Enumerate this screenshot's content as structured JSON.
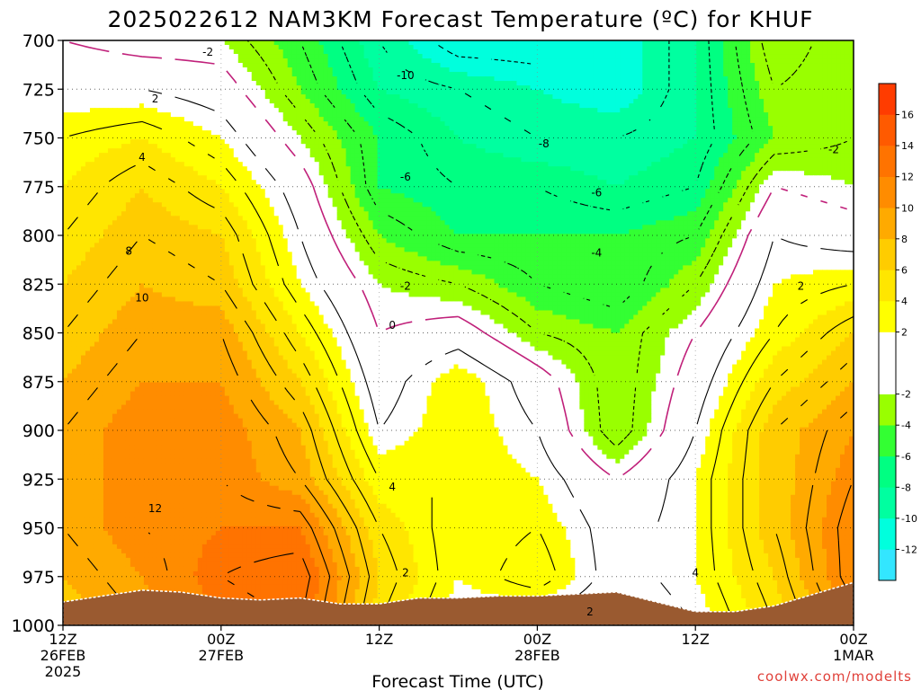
{
  "title": "2025022612 NAM3KM Forecast Temperature (ºC) for KHUF",
  "credit": "coolwx.com/modelts",
  "chart_data": {
    "type": "heatmap",
    "title": "2025022612 NAM3KM Forecast Temperature (ºC) for KHUF",
    "xlabel": "Forecast Time (UTC)",
    "ylabel": "",
    "x": [
      0,
      6,
      12,
      18,
      24,
      30,
      36,
      42,
      48,
      54,
      60
    ],
    "x_unit": "hours since 12Z 26FEB 2025",
    "xlim": [
      0,
      60
    ],
    "x_ticks": [
      {
        "h": 0,
        "lines": [
          "12Z",
          "26FEB",
          "2025"
        ]
      },
      {
        "h": 12,
        "lines": [
          "00Z",
          "27FEB"
        ]
      },
      {
        "h": 24,
        "lines": [
          "12Z"
        ]
      },
      {
        "h": 36,
        "lines": [
          "00Z",
          "28FEB"
        ]
      },
      {
        "h": 48,
        "lines": [
          "12Z"
        ]
      },
      {
        "h": 60,
        "lines": [
          "00Z",
          "1MAR"
        ]
      }
    ],
    "y": [
      1000,
      975,
      950,
      925,
      900,
      875,
      850,
      825,
      800,
      775,
      750,
      725,
      700
    ],
    "y_unit": "hPa",
    "ylim": [
      1000,
      700
    ],
    "y_ticks": [
      "700",
      "725",
      "750",
      "775",
      "800",
      "825",
      "850",
      "875",
      "900",
      "925",
      "950",
      "975",
      "1000"
    ],
    "z": [
      [
        8,
        10,
        13,
        14,
        6,
        2,
        1,
        0,
        2,
        6,
        11
      ],
      [
        9,
        11,
        14,
        15,
        7,
        3,
        5,
        1,
        3,
        7,
        13
      ],
      [
        10,
        12,
        13,
        13,
        6,
        3,
        4,
        1,
        3,
        8,
        13
      ],
      [
        10,
        12,
        12,
        10,
        4,
        4,
        3,
        0,
        3,
        8,
        12
      ],
      [
        10,
        12,
        12,
        9,
        2,
        4,
        2,
        -3,
        2,
        8,
        11
      ],
      [
        9,
        11,
        11,
        7,
        1,
        4,
        1,
        -3,
        1,
        6,
        9
      ],
      [
        8,
        10,
        10,
        5,
        0,
        1,
        -2,
        -3,
        0,
        4,
        7
      ],
      [
        7,
        9,
        8,
        3,
        -1,
        -2,
        -4,
        -5,
        -2,
        3,
        4
      ],
      [
        6,
        8,
        7,
        2,
        -3,
        -5,
        -5,
        -5,
        -4,
        2,
        1
      ],
      [
        5,
        7,
        5,
        1,
        -5,
        -6,
        -6,
        -7,
        -6,
        0,
        -1
      ],
      [
        4,
        5,
        3,
        -1,
        -5,
        -7,
        -8,
        -8,
        -7,
        -3,
        -2
      ],
      [
        2,
        2,
        1,
        -3,
        -7,
        -8,
        -9,
        -10,
        -7,
        -2,
        -3
      ],
      [
        0,
        -1,
        -1,
        -4,
        -8,
        -11,
        -11,
        -10,
        -7,
        -1,
        -3
      ]
    ],
    "terrain_hPa": [
      988,
      985,
      982,
      983,
      986,
      987,
      986,
      989,
      989,
      986,
      986,
      985,
      985,
      984,
      983,
      988,
      993,
      993,
      990,
      984,
      978
    ],
    "contour_labels": [
      {
        "h": 11,
        "p": 706,
        "v": -2
      },
      {
        "h": 7,
        "p": 730,
        "v": 2
      },
      {
        "h": 6,
        "p": 760,
        "v": 4
      },
      {
        "h": 5,
        "p": 808,
        "v": 8
      },
      {
        "h": 6,
        "p": 832,
        "v": 10
      },
      {
        "h": 7,
        "p": 940,
        "v": 12
      },
      {
        "h": 26,
        "p": 718,
        "v": -10
      },
      {
        "h": 26,
        "p": 770,
        "v": -6
      },
      {
        "h": 36.5,
        "p": 753,
        "v": -8
      },
      {
        "h": 40.5,
        "p": 778,
        "v": -6
      },
      {
        "h": 40.5,
        "p": 809,
        "v": -4
      },
      {
        "h": 26,
        "p": 826,
        "v": -2
      },
      {
        "h": 25,
        "p": 846,
        "v": 0
      },
      {
        "h": 25,
        "p": 929,
        "v": 4
      },
      {
        "h": 26,
        "p": 973,
        "v": 2
      },
      {
        "h": 40,
        "p": 993,
        "v": 2
      },
      {
        "h": 48,
        "p": 973,
        "v": 4
      },
      {
        "h": 56,
        "p": 826,
        "v": 2
      },
      {
        "h": 58.5,
        "p": 756,
        "v": -2
      }
    ],
    "levels": [
      -13,
      -11,
      -9,
      -7,
      -5,
      -3,
      -1,
      1,
      3,
      5,
      7,
      9,
      11,
      13,
      15,
      17,
      19
    ],
    "fill_colors": [
      "#33e6ff",
      "#00ffdd",
      "#00ffa0",
      "#00ff82",
      "#33ff33",
      "#99ff00",
      "#ffffff",
      "#ffffff",
      "#ffff00",
      "#ffe600",
      "#ffcc00",
      "#ffaa00",
      "#ff8c00",
      "#ff7300",
      "#ff5a00",
      "#ff3c00"
    ],
    "colorbar_labels": [
      "-12",
      "-10",
      "-8",
      "-6",
      "-4",
      "-2",
      "2",
      "4",
      "6",
      "8",
      "10",
      "12",
      "14",
      "16"
    ],
    "zero_line_color": "#c0207a",
    "terrain_color": "#9a5a30",
    "grid": true
  }
}
